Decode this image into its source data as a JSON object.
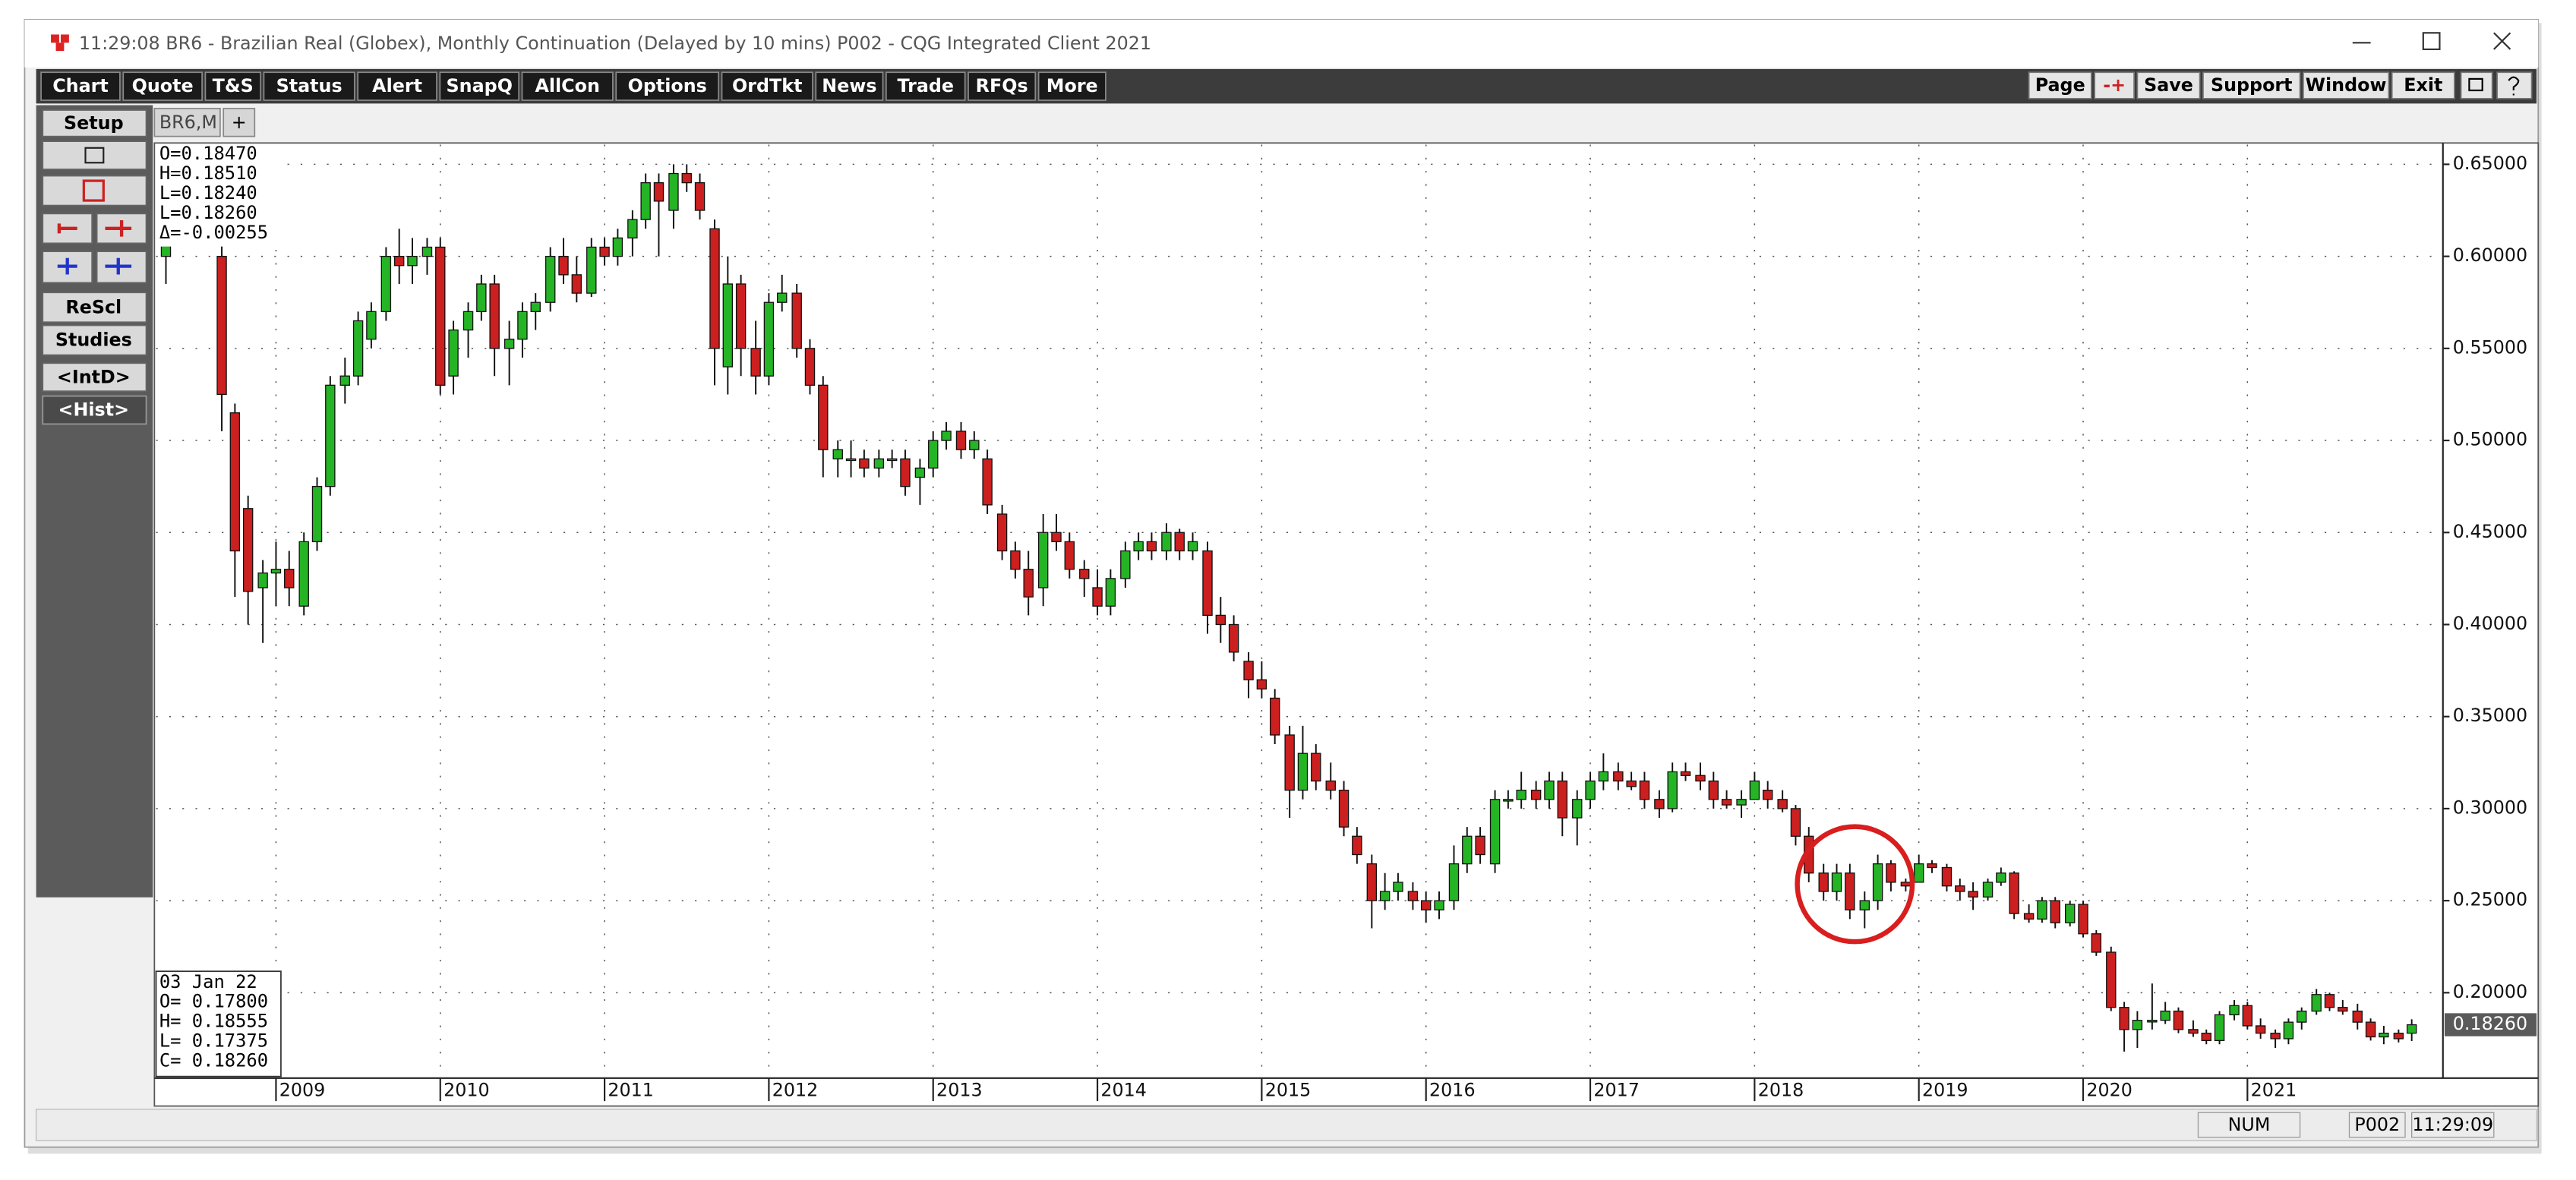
{
  "window": {
    "title": "11:29:08   BR6 - Brazilian Real (Globex), Monthly Continuation (Delayed by 10 mins)   P002 - CQG Integrated Client 2021"
  },
  "toolbar": {
    "left": [
      "Chart",
      "Quote",
      "T&S",
      "Status",
      "Alert",
      "SnapQ",
      "AllCon",
      "Options",
      "OrdTkt",
      "News",
      "Trade",
      "RFQs",
      "More"
    ],
    "right": [
      "Page",
      "-+",
      "Save",
      "Support",
      "Window",
      "Exit"
    ]
  },
  "sidebar": {
    "setup": "Setup",
    "rescale": "ReScl",
    "studies": "Studies",
    "intraday": "<IntD>",
    "history": "<Hist>"
  },
  "tabs": {
    "active": "BR6,M",
    "new": "+"
  },
  "status_bar": [
    "NUM",
    "P002",
    "11:29:09"
  ],
  "chart_data": {
    "type": "candlestick",
    "cursor_box": [
      "O=0.18470",
      "H=0.18510",
      "L=0.18240",
      "L=0.18260",
      "Δ=-0.00255"
    ],
    "last_bar_box": [
      "03  Jan  22",
      "O= 0.17800",
      "H= 0.18555",
      "L= 0.17375",
      "C= 0.18260"
    ],
    "last_price_label": "0.18260",
    "up_color": "#25b425",
    "down_color": "#cc1f1f",
    "grid": true,
    "xlim": [
      2008.27,
      2022.19
    ],
    "xticks": [
      2009,
      2010,
      2011,
      2012,
      2013,
      2014,
      2015,
      2016,
      2017,
      2018,
      2019,
      2020,
      2021
    ],
    "ylim": [
      0.1545,
      0.6607
    ],
    "yticks": [
      {
        "value": 0.2,
        "label": "0.20000"
      },
      {
        "value": 0.25,
        "label": "0.25000"
      },
      {
        "value": 0.3,
        "label": "0.30000"
      },
      {
        "value": 0.35,
        "label": "0.35000"
      },
      {
        "value": 0.4,
        "label": "0.40000"
      },
      {
        "value": 0.45,
        "label": "0.45000"
      },
      {
        "value": 0.5,
        "label": "0.50000"
      },
      {
        "value": 0.55,
        "label": "0.55000"
      },
      {
        "value": 0.6,
        "label": "0.60000"
      },
      {
        "value": 0.65,
        "label": "0.65000"
      }
    ],
    "x": [
      2008.33,
      2008.67,
      2008.75,
      2008.83,
      2008.92,
      2009,
      2009.08,
      2009.17,
      2009.25,
      2009.33,
      2009.42,
      2009.5,
      2009.58,
      2009.67,
      2009.75,
      2009.83,
      2009.92,
      2010,
      2010.08,
      2010.17,
      2010.25,
      2010.33,
      2010.42,
      2010.5,
      2010.58,
      2010.67,
      2010.75,
      2010.83,
      2010.92,
      2011,
      2011.08,
      2011.17,
      2011.25,
      2011.33,
      2011.42,
      2011.5,
      2011.58,
      2011.67,
      2011.75,
      2011.83,
      2011.92,
      2012,
      2012.08,
      2012.17,
      2012.25,
      2012.33,
      2012.42,
      2012.5,
      2012.58,
      2012.67,
      2012.75,
      2012.83,
      2012.92,
      2013,
      2013.08,
      2013.17,
      2013.25,
      2013.33,
      2013.42,
      2013.5,
      2013.58,
      2013.67,
      2013.75,
      2013.83,
      2013.92,
      2014,
      2014.08,
      2014.17,
      2014.25,
      2014.33,
      2014.42,
      2014.5,
      2014.58,
      2014.67,
      2014.75,
      2014.83,
      2014.92,
      2015,
      2015.08,
      2015.17,
      2015.25,
      2015.33,
      2015.42,
      2015.5,
      2015.58,
      2015.67,
      2015.75,
      2015.83,
      2015.92,
      2016,
      2016.08,
      2016.17,
      2016.25,
      2016.33,
      2016.42,
      2016.5,
      2016.58,
      2016.67,
      2016.75,
      2016.83,
      2016.92,
      2017,
      2017.08,
      2017.17,
      2017.25,
      2017.33,
      2017.42,
      2017.5,
      2017.58,
      2017.67,
      2017.75,
      2017.83,
      2017.92,
      2018,
      2018.08,
      2018.17,
      2018.25,
      2018.33,
      2018.42,
      2018.5,
      2018.58,
      2018.67,
      2018.75,
      2018.83,
      2018.92,
      2019,
      2019.08,
      2019.17,
      2019.25,
      2019.33,
      2019.42,
      2019.5,
      2019.58,
      2019.67,
      2019.75,
      2019.83,
      2019.92,
      2020,
      2020.08,
      2020.17,
      2020.25,
      2020.33,
      2020.42,
      2020.5,
      2020.58,
      2020.67,
      2020.75,
      2020.83,
      2020.92,
      2021,
      2021.08,
      2021.17,
      2021.25,
      2021.33,
      2021.42,
      2021.5,
      2021.58,
      2021.67,
      2021.75,
      2021.83,
      2021.92,
      2022
    ],
    "open": [
      0.6,
      0.6,
      0.515,
      0.463,
      0.42,
      0.428,
      0.43,
      0.41,
      0.445,
      0.475,
      0.53,
      0.535,
      0.555,
      0.57,
      0.6,
      0.595,
      0.6,
      0.605,
      0.535,
      0.56,
      0.57,
      0.585,
      0.55,
      0.555,
      0.57,
      0.575,
      0.6,
      0.59,
      0.58,
      0.605,
      0.6,
      0.61,
      0.62,
      0.64,
      0.625,
      0.645,
      0.64,
      0.615,
      0.54,
      0.585,
      0.55,
      0.535,
      0.575,
      0.58,
      0.55,
      0.53,
      0.49,
      0.49,
      0.49,
      0.485,
      0.49,
      0.49,
      0.48,
      0.485,
      0.5,
      0.505,
      0.495,
      0.49,
      0.46,
      0.44,
      0.43,
      0.42,
      0.45,
      0.445,
      0.43,
      0.42,
      0.41,
      0.425,
      0.44,
      0.445,
      0.44,
      0.45,
      0.44,
      0.44,
      0.405,
      0.4,
      0.38,
      0.37,
      0.36,
      0.34,
      0.31,
      0.33,
      0.315,
      0.31,
      0.285,
      0.27,
      0.25,
      0.255,
      0.255,
      0.25,
      0.245,
      0.25,
      0.27,
      0.285,
      0.27,
      0.305,
      0.305,
      0.31,
      0.305,
      0.315,
      0.295,
      0.305,
      0.315,
      0.32,
      0.315,
      0.315,
      0.305,
      0.3,
      0.32,
      0.318,
      0.315,
      0.305,
      0.302,
      0.305,
      0.31,
      0.305,
      0.3,
      0.285,
      0.265,
      0.255,
      0.265,
      0.245,
      0.25,
      0.27,
      0.26,
      0.26,
      0.27,
      0.268,
      0.258,
      0.255,
      0.252,
      0.26,
      0.265,
      0.243,
      0.24,
      0.25,
      0.238,
      0.248,
      0.232,
      0.222,
      0.192,
      0.18,
      0.185,
      0.185,
      0.19,
      0.18,
      0.178,
      0.174,
      0.188,
      0.193,
      0.182,
      0.178,
      0.175,
      0.184,
      0.19,
      0.199,
      0.192,
      0.19,
      0.184,
      0.176,
      0.178,
      0.178
    ],
    "high": [
      0.62,
      0.61,
      0.52,
      0.47,
      0.435,
      0.445,
      0.44,
      0.45,
      0.48,
      0.535,
      0.545,
      0.57,
      0.575,
      0.605,
      0.615,
      0.61,
      0.61,
      0.61,
      0.565,
      0.575,
      0.59,
      0.59,
      0.565,
      0.575,
      0.58,
      0.605,
      0.61,
      0.6,
      0.61,
      0.61,
      0.615,
      0.625,
      0.645,
      0.645,
      0.65,
      0.65,
      0.645,
      0.62,
      0.6,
      0.59,
      0.565,
      0.58,
      0.59,
      0.585,
      0.555,
      0.535,
      0.5,
      0.5,
      0.495,
      0.495,
      0.495,
      0.495,
      0.49,
      0.505,
      0.51,
      0.51,
      0.505,
      0.495,
      0.465,
      0.445,
      0.44,
      0.46,
      0.46,
      0.45,
      0.435,
      0.43,
      0.43,
      0.445,
      0.45,
      0.45,
      0.455,
      0.452,
      0.45,
      0.445,
      0.415,
      0.405,
      0.385,
      0.38,
      0.365,
      0.345,
      0.345,
      0.335,
      0.325,
      0.315,
      0.29,
      0.275,
      0.265,
      0.265,
      0.26,
      0.255,
      0.255,
      0.28,
      0.29,
      0.29,
      0.31,
      0.31,
      0.32,
      0.315,
      0.32,
      0.32,
      0.31,
      0.32,
      0.33,
      0.325,
      0.32,
      0.32,
      0.31,
      0.325,
      0.325,
      0.325,
      0.32,
      0.31,
      0.31,
      0.32,
      0.315,
      0.31,
      0.302,
      0.29,
      0.27,
      0.27,
      0.27,
      0.255,
      0.275,
      0.272,
      0.262,
      0.275,
      0.272,
      0.27,
      0.262,
      0.26,
      0.262,
      0.268,
      0.266,
      0.248,
      0.252,
      0.252,
      0.25,
      0.25,
      0.234,
      0.225,
      0.195,
      0.19,
      0.205,
      0.195,
      0.192,
      0.185,
      0.18,
      0.19,
      0.196,
      0.195,
      0.186,
      0.18,
      0.186,
      0.192,
      0.202,
      0.2,
      0.196,
      0.194,
      0.186,
      0.182,
      0.18,
      0.18555
    ],
    "low": [
      0.585,
      0.505,
      0.415,
      0.4,
      0.39,
      0.41,
      0.41,
      0.405,
      0.44,
      0.47,
      0.52,
      0.53,
      0.55,
      0.565,
      0.585,
      0.585,
      0.59,
      0.525,
      0.525,
      0.545,
      0.565,
      0.535,
      0.53,
      0.545,
      0.56,
      0.57,
      0.585,
      0.575,
      0.578,
      0.595,
      0.595,
      0.6,
      0.615,
      0.6,
      0.615,
      0.635,
      0.62,
      0.53,
      0.525,
      0.535,
      0.525,
      0.53,
      0.57,
      0.545,
      0.525,
      0.48,
      0.48,
      0.48,
      0.48,
      0.48,
      0.485,
      0.47,
      0.465,
      0.48,
      0.495,
      0.49,
      0.49,
      0.46,
      0.435,
      0.425,
      0.405,
      0.41,
      0.44,
      0.425,
      0.415,
      0.405,
      0.405,
      0.42,
      0.435,
      0.435,
      0.435,
      0.435,
      0.435,
      0.395,
      0.39,
      0.38,
      0.36,
      0.36,
      0.335,
      0.295,
      0.305,
      0.31,
      0.305,
      0.285,
      0.27,
      0.235,
      0.245,
      0.25,
      0.245,
      0.238,
      0.24,
      0.245,
      0.265,
      0.27,
      0.265,
      0.3,
      0.3,
      0.3,
      0.3,
      0.285,
      0.28,
      0.3,
      0.31,
      0.31,
      0.31,
      0.3,
      0.295,
      0.298,
      0.315,
      0.31,
      0.3,
      0.3,
      0.295,
      0.305,
      0.3,
      0.298,
      0.28,
      0.26,
      0.25,
      0.25,
      0.24,
      0.235,
      0.245,
      0.255,
      0.255,
      0.26,
      0.265,
      0.255,
      0.25,
      0.245,
      0.25,
      0.258,
      0.24,
      0.238,
      0.238,
      0.235,
      0.236,
      0.23,
      0.22,
      0.19,
      0.168,
      0.17,
      0.18,
      0.183,
      0.178,
      0.176,
      0.172,
      0.172,
      0.185,
      0.18,
      0.175,
      0.17,
      0.172,
      0.18,
      0.188,
      0.19,
      0.188,
      0.18,
      0.174,
      0.172,
      0.173,
      0.17375
    ],
    "close": [
      0.61,
      0.525,
      0.44,
      0.418,
      0.428,
      0.43,
      0.42,
      0.445,
      0.475,
      0.53,
      0.535,
      0.565,
      0.57,
      0.6,
      0.595,
      0.6,
      0.605,
      0.53,
      0.56,
      0.57,
      0.585,
      0.55,
      0.555,
      0.57,
      0.575,
      0.6,
      0.59,
      0.58,
      0.605,
      0.6,
      0.61,
      0.62,
      0.64,
      0.63,
      0.645,
      0.64,
      0.625,
      0.55,
      0.585,
      0.55,
      0.535,
      0.575,
      0.58,
      0.55,
      0.53,
      0.495,
      0.495,
      0.49,
      0.485,
      0.49,
      0.49,
      0.475,
      0.485,
      0.5,
      0.505,
      0.495,
      0.5,
      0.465,
      0.44,
      0.43,
      0.415,
      0.45,
      0.445,
      0.43,
      0.425,
      0.41,
      0.425,
      0.44,
      0.445,
      0.44,
      0.45,
      0.44,
      0.445,
      0.405,
      0.4,
      0.385,
      0.37,
      0.365,
      0.34,
      0.31,
      0.33,
      0.315,
      0.31,
      0.29,
      0.275,
      0.25,
      0.255,
      0.26,
      0.25,
      0.245,
      0.25,
      0.27,
      0.285,
      0.275,
      0.305,
      0.305,
      0.31,
      0.305,
      0.315,
      0.295,
      0.305,
      0.315,
      0.32,
      0.315,
      0.312,
      0.305,
      0.3,
      0.32,
      0.318,
      0.315,
      0.305,
      0.302,
      0.305,
      0.315,
      0.305,
      0.3,
      0.285,
      0.265,
      0.255,
      0.265,
      0.245,
      0.25,
      0.27,
      0.26,
      0.258,
      0.27,
      0.268,
      0.258,
      0.255,
      0.252,
      0.26,
      0.265,
      0.243,
      0.24,
      0.25,
      0.238,
      0.248,
      0.232,
      0.222,
      0.192,
      0.18,
      0.185,
      0.185,
      0.19,
      0.18,
      0.178,
      0.174,
      0.188,
      0.193,
      0.182,
      0.178,
      0.175,
      0.184,
      0.19,
      0.199,
      0.192,
      0.19,
      0.184,
      0.176,
      0.178,
      0.175,
      0.1826
    ]
  }
}
